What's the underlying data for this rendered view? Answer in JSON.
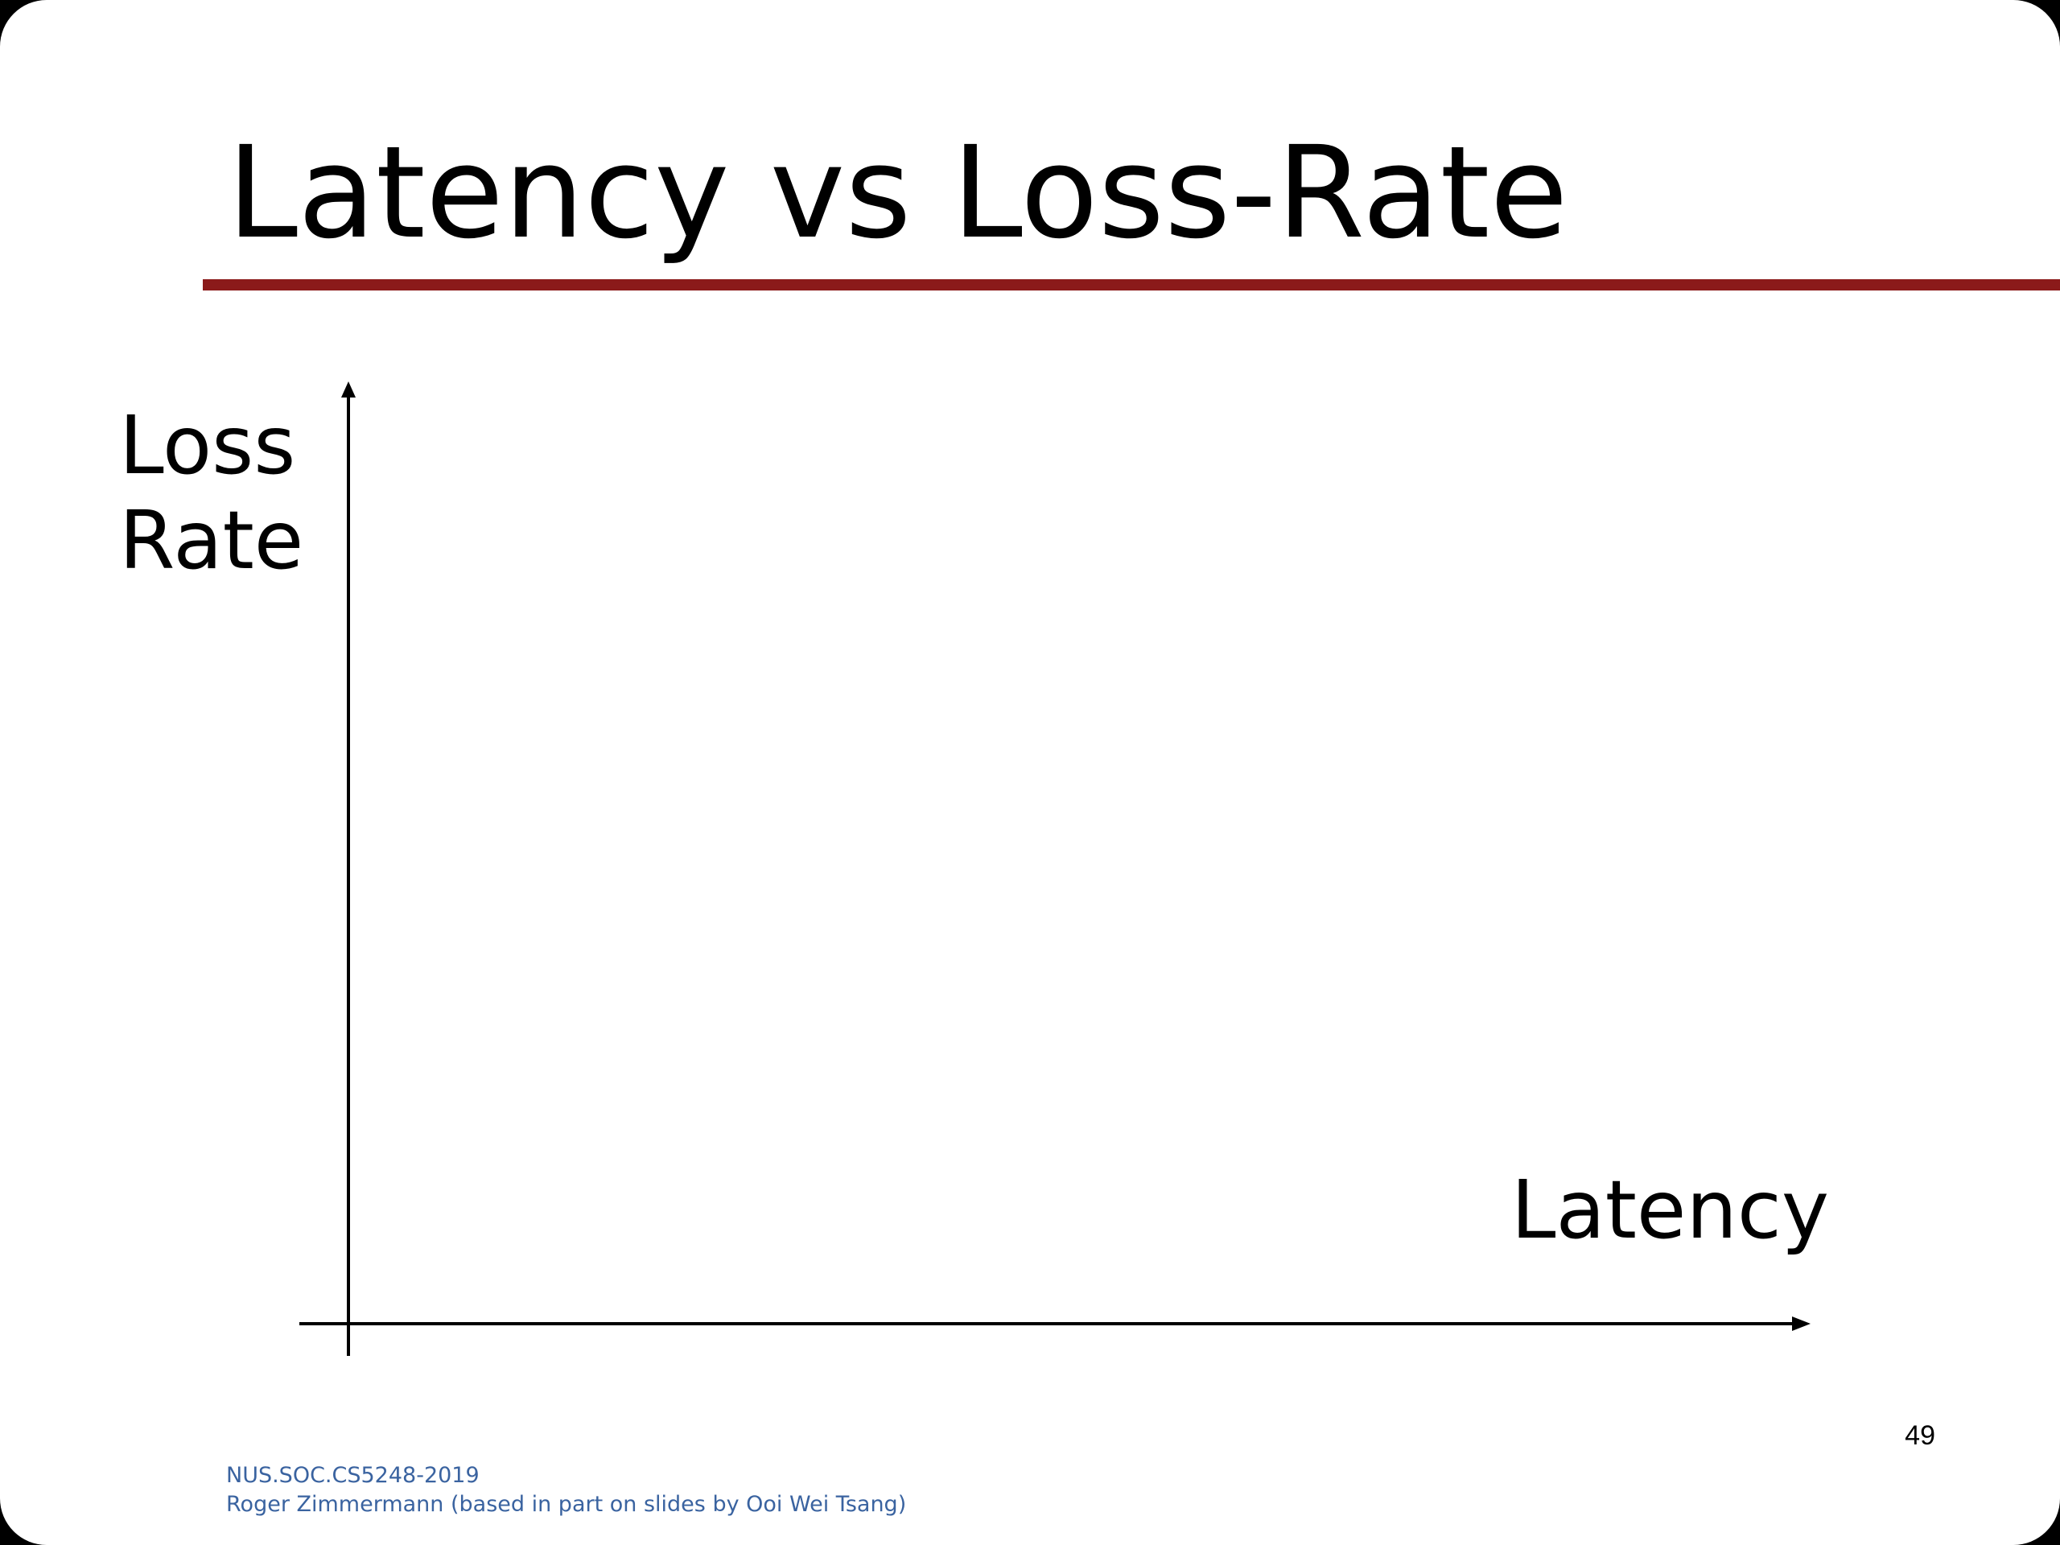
{
  "slide": {
    "title": "Latency vs Loss-Rate",
    "accent_color": "#8b1a1a",
    "page_number": "49"
  },
  "diagram": {
    "y_axis_label": "Loss\nRate",
    "x_axis_label": "Latency"
  },
  "footer": {
    "course": "NUS.SOC.CS5248-2019",
    "credit": "Roger Zimmermann (based in part on slides by Ooi Wei Tsang)",
    "color": "#3a63a0"
  }
}
